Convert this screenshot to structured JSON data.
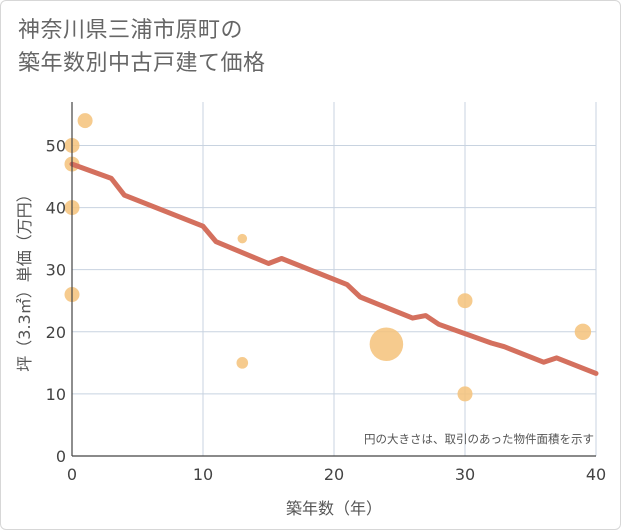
{
  "title_line1": "神奈川県三浦市原町の",
  "title_line2": "築年数別中古戸建て価格",
  "chart_data": {
    "type": "scatter",
    "title": "神奈川県三浦市原町の築年数別中古戸建て価格",
    "xlabel": "築年数（年）",
    "ylabel": "坪（3.3㎡）単価（万円）",
    "xlim": [
      0,
      40
    ],
    "ylim": [
      0,
      57
    ],
    "xticks": [
      0,
      10,
      20,
      30,
      40
    ],
    "yticks": [
      0,
      10,
      20,
      30,
      40,
      50
    ],
    "grid": true,
    "note": "円の大きさは、取引のあった物件面積を示す",
    "points": [
      {
        "x": 0,
        "y": 50,
        "size": 1.0
      },
      {
        "x": 0,
        "y": 47,
        "size": 1.0
      },
      {
        "x": 0,
        "y": 40,
        "size": 1.0
      },
      {
        "x": 0,
        "y": 26,
        "size": 1.0
      },
      {
        "x": 1,
        "y": 54,
        "size": 1.0
      },
      {
        "x": 13,
        "y": 35,
        "size": 0.4
      },
      {
        "x": 13,
        "y": 15,
        "size": 0.6
      },
      {
        "x": 24,
        "y": 18,
        "size": 5.0
      },
      {
        "x": 30,
        "y": 25,
        "size": 1.0
      },
      {
        "x": 30,
        "y": 10,
        "size": 1.0
      },
      {
        "x": 39,
        "y": 20,
        "size": 1.2
      }
    ],
    "trend": {
      "x": [
        0,
        3,
        4,
        10,
        11,
        15,
        16,
        21,
        22,
        26,
        27,
        28,
        32,
        33,
        36,
        37,
        40
      ],
      "y": [
        47,
        44.7,
        42,
        37,
        34.5,
        31,
        31.8,
        27.6,
        25.6,
        22.2,
        22.6,
        21.2,
        18.2,
        17.6,
        15.1,
        15.8,
        13.3
      ]
    },
    "colors": {
      "bubble": "#f5c27a",
      "trend": "#d4705e",
      "grid": "#c8d3e0"
    }
  }
}
